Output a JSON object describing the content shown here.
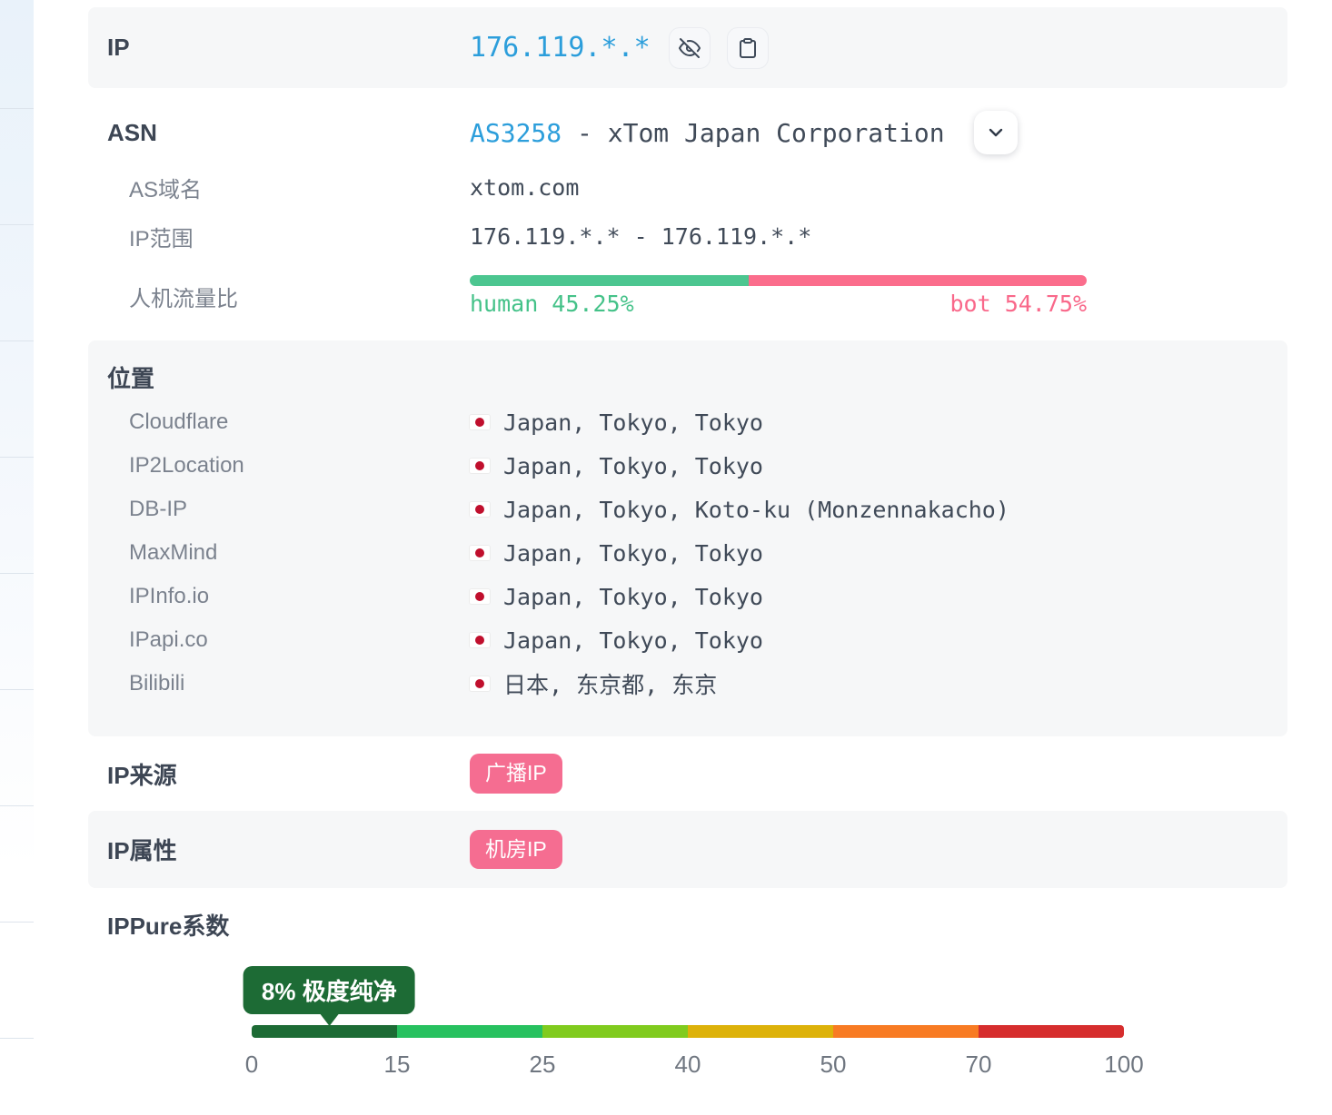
{
  "colors": {
    "link_blue": "#2c9edb",
    "human_green": "#4cc690",
    "bot_pink": "#fb6d8c",
    "badge_pink": "#f56d91",
    "tooltip_green": "#1d6b35",
    "flag_red": "#c00f2d",
    "section_gray": "#f6f7f8",
    "scale_segments": [
      "#1d6b35",
      "#27c15f",
      "#80cb1e",
      "#ddb20a",
      "#f87b23",
      "#d62d2d"
    ]
  },
  "ip_row": {
    "label": "IP",
    "value": "176.119.*.*",
    "hide_icon": "eye-off-icon",
    "copy_icon": "clipboard-icon"
  },
  "asn": {
    "label": "ASN",
    "as_number": "AS3258",
    "org": " - xTom Japan Corporation",
    "expand_icon": "chevron-down-icon",
    "domain_label": "AS域名",
    "domain_value": "xtom.com",
    "range_label": "IP范围",
    "range_value": "176.119.*.* - 176.119.*.*",
    "traffic_label": "人机流量比",
    "traffic": {
      "human_pct": 45.25,
      "bot_pct": 54.75,
      "human_label": "human 45.25%",
      "bot_label": "bot 54.75%"
    }
  },
  "location": {
    "title": "位置",
    "flag_icon": "japan-flag-icon",
    "rows": [
      {
        "source": "Cloudflare",
        "value": "Japan, Tokyo, Tokyo"
      },
      {
        "source": "IP2Location",
        "value": "Japan, Tokyo, Tokyo"
      },
      {
        "source": "DB-IP",
        "value": "Japan, Tokyo, Koto-ku (Monzennakacho)"
      },
      {
        "source": "MaxMind",
        "value": "Japan, Tokyo, Tokyo"
      },
      {
        "source": "IPInfo.io",
        "value": "Japan, Tokyo, Tokyo"
      },
      {
        "source": "IPapi.co",
        "value": "Japan, Tokyo, Tokyo"
      },
      {
        "source": "Bilibili",
        "value": "日本, 东京都, 东京"
      }
    ]
  },
  "ip_source": {
    "label": "IP来源",
    "badge": "广播IP"
  },
  "ip_attribute": {
    "label": "IP属性",
    "badge": "机房IP"
  },
  "ippure": {
    "title": "IPPure系数",
    "score": 8,
    "tooltip": "8% 极度纯净",
    "ticks": [
      "0",
      "15",
      "25",
      "40",
      "50",
      "70",
      "100"
    ]
  }
}
